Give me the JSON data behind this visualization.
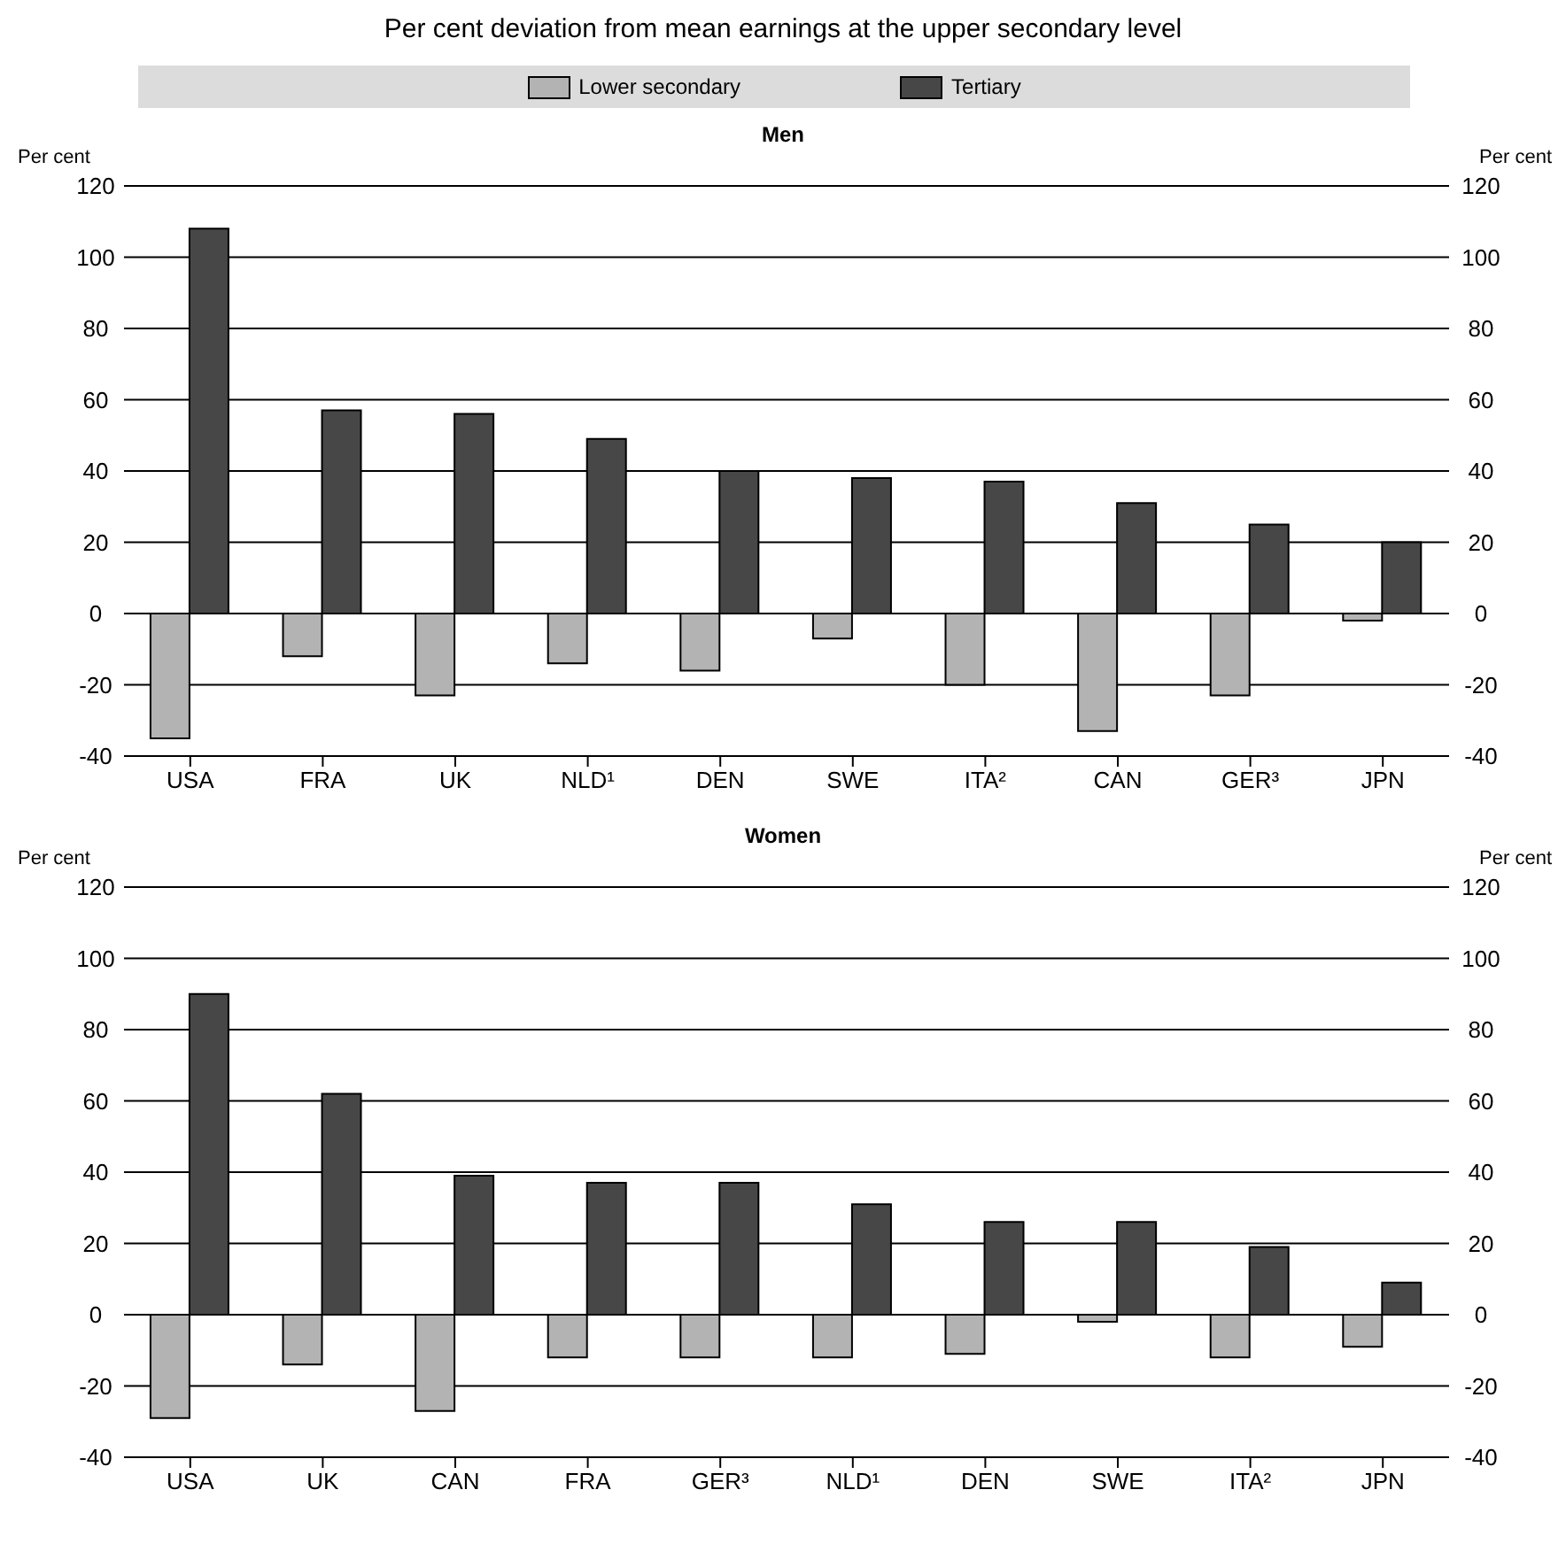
{
  "chart_data": [
    {
      "type": "bar",
      "title": "Per cent deviation from mean earnings at the upper secondary level",
      "subtitle": "Men",
      "ylabel": "Per cent",
      "y2label": "Per cent",
      "categories": [
        "USA",
        "FRA",
        "UK",
        "NLD¹",
        "DEN",
        "SWE",
        "ITA²",
        "CAN",
        "GER³",
        "JPN"
      ],
      "series": [
        {
          "name": "Lower secondary",
          "color": "#b3b3b3",
          "values": [
            -35,
            -12,
            -23,
            -14,
            -16,
            -7,
            -20,
            -33,
            -23,
            -2
          ]
        },
        {
          "name": "Tertiary",
          "color": "#474747",
          "values": [
            108,
            57,
            56,
            49,
            40,
            38,
            37,
            31,
            25,
            20
          ]
        }
      ],
      "ylim": [
        -40,
        120
      ],
      "yticks": [
        -40,
        -20,
        0,
        20,
        40,
        60,
        80,
        100,
        120
      ],
      "y2lim": [
        -40,
        120
      ],
      "y2ticks": [
        -40,
        -20,
        0,
        20,
        40,
        60,
        80,
        100,
        120
      ],
      "grid": "y",
      "legend": "top"
    },
    {
      "type": "bar",
      "subtitle": "Women",
      "ylabel": "Per cent",
      "y2label": "Per cent",
      "categories": [
        "USA",
        "UK",
        "CAN",
        "FRA",
        "GER³",
        "NLD¹",
        "DEN",
        "SWE",
        "ITA²",
        "JPN"
      ],
      "series": [
        {
          "color": "#b3b3b3",
          "values": [
            -29,
            -14,
            -27,
            -12,
            -12,
            -12,
            -11,
            -2,
            -12,
            -9
          ]
        },
        {
          "color": "#474747",
          "values": [
            90,
            62,
            39,
            37,
            37,
            31,
            26,
            26,
            19,
            9
          ]
        }
      ],
      "ylim": [
        -40,
        120
      ],
      "yticks": [
        -40,
        -20,
        0,
        20,
        40,
        60,
        80,
        100,
        120
      ],
      "y2lim": [
        -40,
        120
      ],
      "y2ticks": [
        -40,
        -20,
        0,
        20,
        40,
        60,
        80,
        100,
        120
      ],
      "grid": "y"
    }
  ]
}
